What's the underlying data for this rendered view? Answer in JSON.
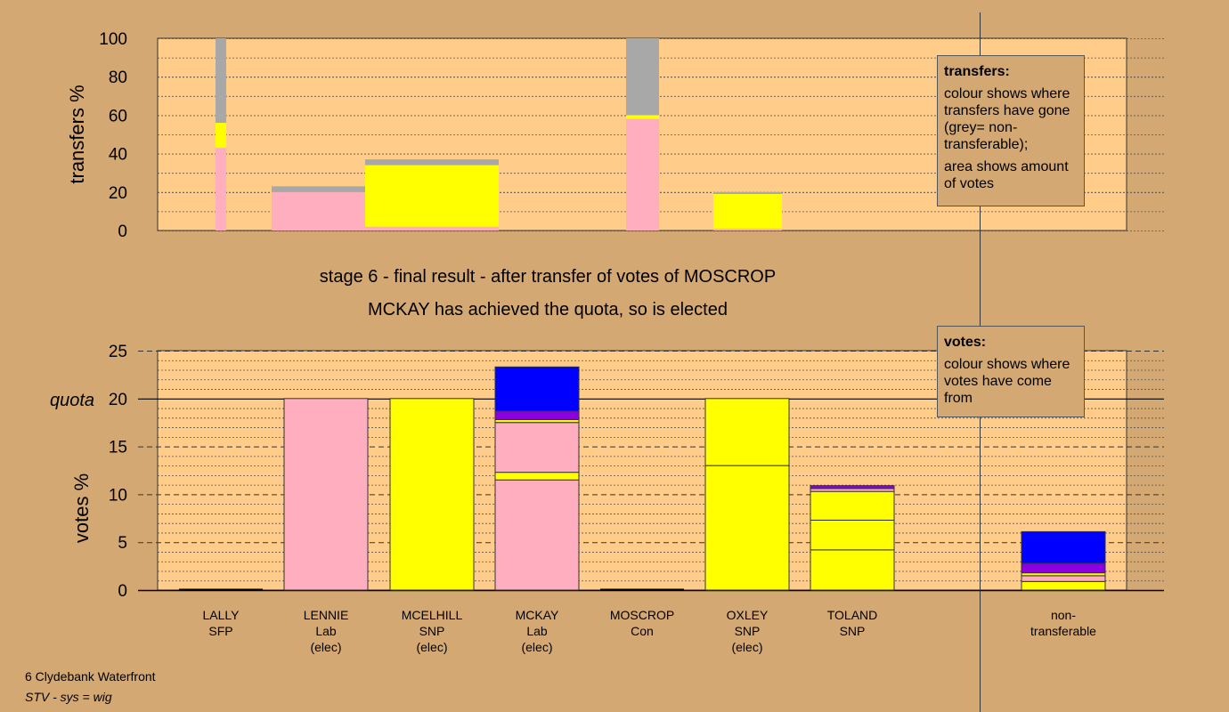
{
  "titles": {
    "stage": "stage 6 - final result - after transfer of votes of MOSCROP",
    "result": "MCKAY has achieved the quota, so is elected"
  },
  "legend_transfers": {
    "heading": "transfers:",
    "text1": "colour shows where transfers have gone (grey= non-transferable);",
    "text2": "area shows amount of votes"
  },
  "legend_votes": {
    "heading": "votes:",
    "text1": "colour shows where votes have come from"
  },
  "footer": {
    "ward": "6 Clydebank Waterfront",
    "system": "STV - sys = wig"
  },
  "colors": {
    "background": "#d4a872",
    "plot_bg": "#ffcc8a",
    "lab": "#ffaec0",
    "snp": "#ffff00",
    "con": "#0000ff",
    "sfp": "#8a00e0",
    "nontransferable": "#a8a8a8"
  },
  "chart_data": [
    {
      "type": "bar",
      "name": "transfers",
      "ylabel": "transfers %",
      "ylim": [
        0,
        100
      ],
      "yticks": [
        0,
        20,
        40,
        60,
        80,
        100
      ],
      "bars": [
        {
          "segments": [
            {
              "value": 43,
              "color": "lab"
            },
            {
              "value": 13,
              "color": "snp"
            },
            {
              "value": 44,
              "color": "nontransferable"
            }
          ]
        },
        {
          "segments": [
            {
              "value": 20,
              "color": "lab"
            },
            {
              "value": 3,
              "color": "nontransferable"
            }
          ]
        },
        {
          "segments": [
            {
              "value": 2,
              "color": "lab"
            },
            {
              "value": 32,
              "color": "snp"
            },
            {
              "value": 3,
              "color": "nontransferable"
            }
          ]
        },
        {
          "segments": [
            {
              "value": 58,
              "color": "lab"
            },
            {
              "value": 2,
              "color": "snp"
            },
            {
              "value": 40,
              "color": "nontransferable"
            }
          ]
        },
        {
          "segments": [
            {
              "value": 1,
              "color": "lab"
            },
            {
              "value": 18,
              "color": "snp"
            },
            {
              "value": 1,
              "color": "nontransferable"
            }
          ]
        }
      ]
    },
    {
      "type": "bar",
      "name": "votes",
      "ylabel": "votes %",
      "quota_label": "quota",
      "quota": 20,
      "ylim": [
        0,
        25
      ],
      "yticks": [
        0,
        5,
        10,
        15,
        20,
        25
      ],
      "candidates": [
        {
          "name": "LALLY",
          "party": "SFP",
          "status": "",
          "segments": []
        },
        {
          "name": "LENNIE",
          "party": "Lab",
          "status": "(elec)",
          "segments": [
            {
              "value": 20,
              "color": "lab"
            }
          ]
        },
        {
          "name": "MCELHILL",
          "party": "SNP",
          "status": "(elec)",
          "segments": [
            {
              "value": 20,
              "color": "snp"
            }
          ]
        },
        {
          "name": "MCKAY",
          "party": "Lab",
          "status": "(elec)",
          "segments": [
            {
              "value": 11.5,
              "color": "lab"
            },
            {
              "value": 0.8,
              "color": "snp"
            },
            {
              "value": 5.2,
              "color": "lab"
            },
            {
              "value": 0.3,
              "color": "snp"
            },
            {
              "value": 0.9,
              "color": "sfp"
            },
            {
              "value": 4.6,
              "color": "con"
            }
          ]
        },
        {
          "name": "MOSCROP",
          "party": "Con",
          "status": "",
          "segments": []
        },
        {
          "name": "OXLEY",
          "party": "SNP",
          "status": "(elec)",
          "segments": [
            {
              "value": 13,
              "color": "snp"
            },
            {
              "value": 7,
              "color": "snp"
            }
          ]
        },
        {
          "name": "TOLAND",
          "party": "SNP",
          "status": "",
          "segments": [
            {
              "value": 4.2,
              "color": "snp"
            },
            {
              "value": 3.1,
              "color": "snp"
            },
            {
              "value": 3,
              "color": "snp"
            },
            {
              "value": 0.3,
              "color": "lab"
            },
            {
              "value": 0.3,
              "color": "sfp"
            }
          ]
        },
        {
          "name": "non-",
          "party": "transferable",
          "status": "",
          "segments": [
            {
              "value": 0.9,
              "color": "snp"
            },
            {
              "value": 0.6,
              "color": "lab"
            },
            {
              "value": 0.3,
              "color": "snp"
            },
            {
              "value": 1,
              "color": "sfp"
            },
            {
              "value": 3.3,
              "color": "con"
            }
          ]
        }
      ]
    }
  ]
}
